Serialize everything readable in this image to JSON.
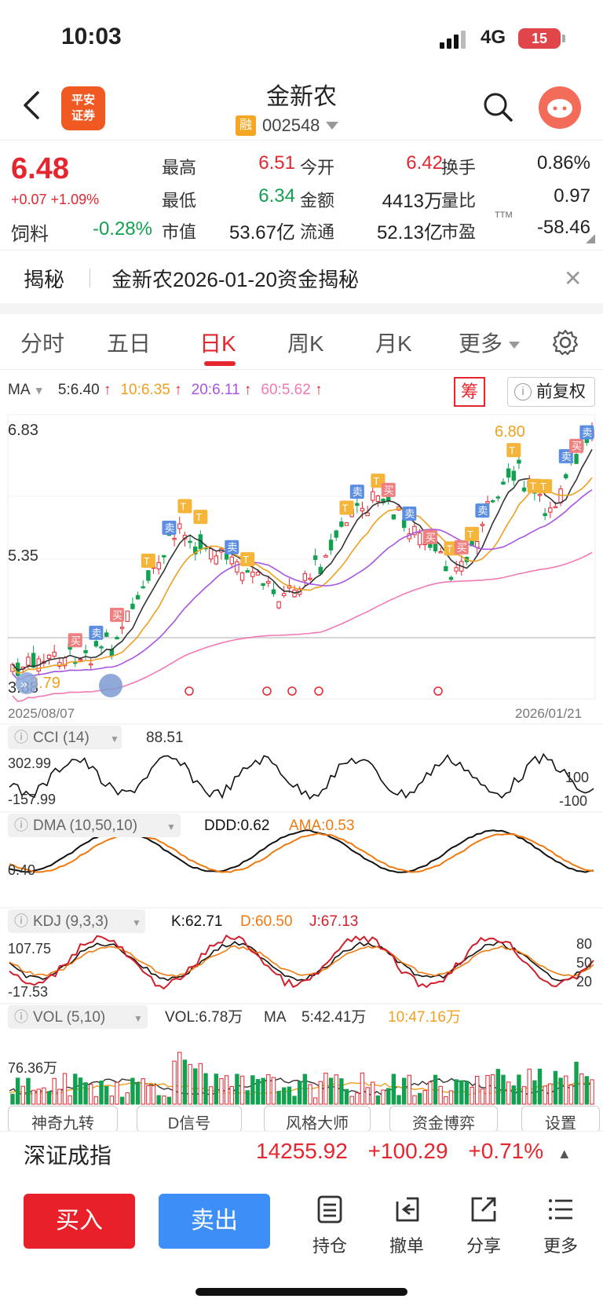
{
  "status_bar": {
    "time": "10:03",
    "network": "4G",
    "battery": "15"
  },
  "header": {
    "logo_text": "平安\n证券",
    "title": "金新农",
    "badge": "融",
    "code": "002548"
  },
  "quote": {
    "price": "6.48",
    "change": "+0.07 +1.09%",
    "sector_name": "饲料",
    "sector_change": "-0.28%",
    "fields": [
      {
        "label": "最高",
        "value": "6.51",
        "color": "#e5262f"
      },
      {
        "label": "今开",
        "value": "6.42",
        "color": "#e5262f"
      },
      {
        "label": "换手",
        "value": "0.86%",
        "color": "#222222"
      },
      {
        "label": "最低",
        "value": "6.34",
        "color": "#12a150"
      },
      {
        "label": "金额",
        "value": "4413万",
        "color": "#222222"
      },
      {
        "label": "量比",
        "value": "0.97",
        "color": "#222222"
      },
      {
        "label": "市值",
        "value": "53.67亿",
        "color": "#222222"
      },
      {
        "label": "流通",
        "value": "52.13亿",
        "color": "#222222"
      },
      {
        "label": "市盈",
        "value": "-58.46",
        "color": "#222222"
      }
    ],
    "ttm": "TTM"
  },
  "reveal": {
    "tag": "揭秘",
    "text": "金新农2026-01-20资金揭秘",
    "close": "✕"
  },
  "tabs": [
    "分时",
    "五日",
    "日K",
    "周K",
    "月K",
    "更多"
  ],
  "active_tab": "日K",
  "ma": {
    "label": "MA",
    "items": [
      {
        "text": "5:6.40",
        "color": "#333333"
      },
      {
        "text": "10:6.35",
        "color": "#f0a020"
      },
      {
        "text": "20:6.11",
        "color": "#a855e0"
      },
      {
        "text": "60:5.62",
        "color": "#f07ab4"
      }
    ],
    "chou": "筹",
    "fuquan": "前复权"
  },
  "kline": {
    "y_top": "6.83",
    "y_mid": "5.35",
    "y_bottom": "3.88",
    "max_label": "6.80",
    "min_label": "3.79",
    "date_start": "2025/08/07",
    "date_end": "2026/01/21",
    "buy_mark": "买",
    "sell_mark": "卖",
    "t_mark": "T"
  },
  "cci": {
    "name": "CCI (14)",
    "value": "88.51",
    "top": "302.99",
    "bottom": "-157.99",
    "r100": "100",
    "rm100": "-100"
  },
  "dma": {
    "name": "DMA (10,50,10)",
    "ddd": "DDD:0.62",
    "ama": "AMA:0.53",
    "level": "0.40"
  },
  "kdj": {
    "name": "KDJ (9,3,3)",
    "k": "K:62.71",
    "d": "D:60.50",
    "j": "J:67.13",
    "top": "107.75",
    "bottom": "-17.53",
    "r80": "80",
    "r50": "50",
    "r20": "20"
  },
  "vol": {
    "name": "VOL (5,10)",
    "vol": "VOL:6.78万",
    "ma": "MA",
    "ma5": "5:42.41万",
    "ma10": "10:47.16万",
    "level": "76.36万"
  },
  "tools": [
    "神奇九转",
    "D信号",
    "风格大师",
    "资金博弈",
    "设置"
  ],
  "index": {
    "name": "深证成指",
    "value": "14255.92",
    "change": "+100.29",
    "pct": "+0.71%"
  },
  "actions": {
    "buy": "买入",
    "sell": "卖出"
  },
  "bottom_nav": [
    "持仓",
    "撤单",
    "分享",
    "更多"
  ],
  "colors": {
    "up": "#e5262f",
    "down": "#12a150",
    "accent": "#f05a22",
    "sell_btn": "#3e8ef7"
  }
}
